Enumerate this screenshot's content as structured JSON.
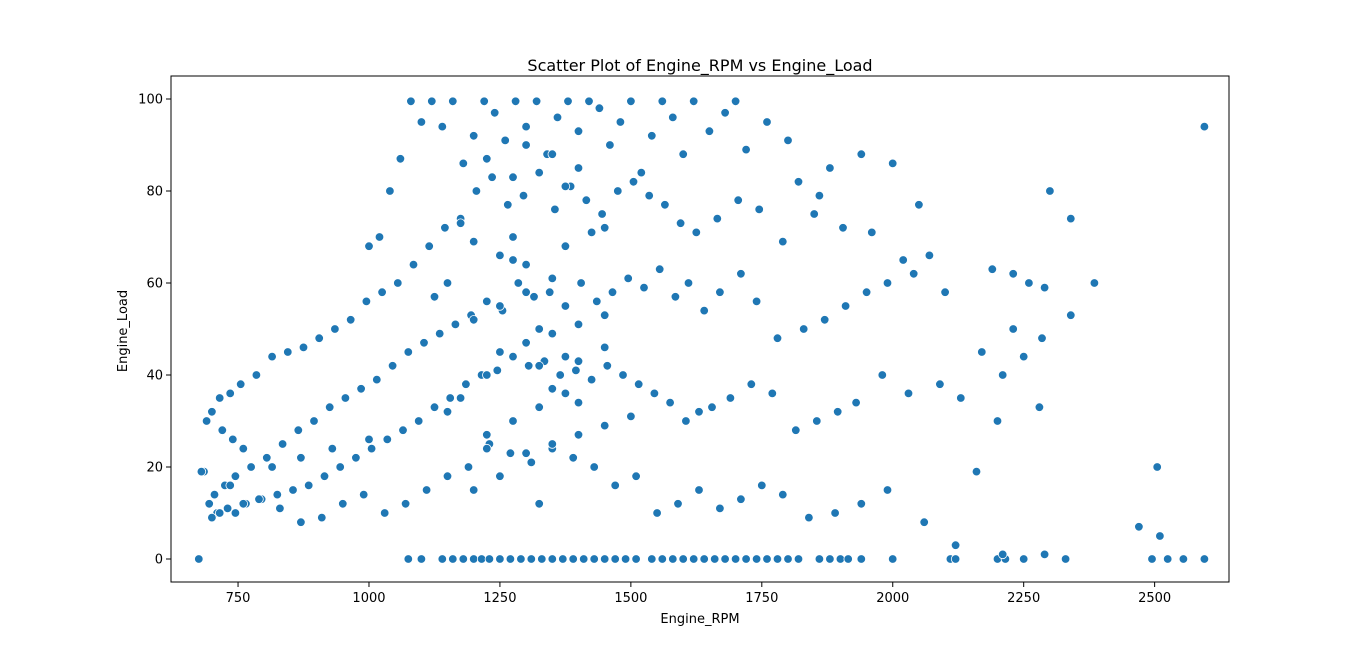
{
  "chart_data": {
    "type": "scatter",
    "title": "Scatter Plot of Engine_RPM vs Engine_Load",
    "xlabel": "Engine_RPM",
    "ylabel": "Engine_Load",
    "xlim": [
      622,
      2642
    ],
    "ylim": [
      -5,
      105
    ],
    "xticks": [
      750,
      1000,
      1250,
      1500,
      1750,
      2000,
      2250,
      2500
    ],
    "yticks": [
      0,
      20,
      40,
      60,
      80,
      100
    ],
    "grid": false,
    "legend": "none",
    "marker_color": "#1f77b4",
    "marker_edge_color": "#ffffff",
    "series": [
      {
        "x": [
          675,
          1075,
          1100,
          1140,
          1160,
          1180,
          1200,
          1215,
          1230,
          1250,
          1270,
          1290,
          1310,
          1330,
          1350,
          1370,
          1390,
          1410,
          1430,
          1450,
          1470,
          1490,
          1510,
          1540,
          1560,
          1580,
          1600,
          1620,
          1640,
          1660,
          1680,
          1700,
          1720,
          1740,
          1760,
          1780,
          1800,
          1820,
          1860,
          1880,
          1900,
          1915,
          1940,
          2000,
          2110,
          2120,
          2200,
          2215,
          2250,
          2330,
          2495,
          2525,
          2555,
          2595,
          2595,
          2385,
          2300,
          2340,
          2050,
          2000,
          1940,
          1880,
          1860,
          1820,
          1800,
          1760,
          1720,
          1700,
          1680,
          1650,
          1620,
          1600,
          1580,
          1560,
          1540,
          1520,
          1500,
          1480,
          1460,
          1440,
          1420,
          1400,
          1380,
          1360,
          1340,
          1320,
          1300,
          1280,
          1260,
          1240,
          1220,
          1200,
          1180,
          1160,
          1140,
          1120,
          1100,
          1080,
          1060,
          1040,
          1020,
          1000,
          2190,
          2230,
          2260,
          2290,
          2020,
          2070,
          1960,
          1905,
          1850,
          1790,
          1745,
          1705,
          1665,
          1625,
          1595,
          1565,
          1535,
          1505,
          1475,
          1445,
          1415,
          1385,
          1355,
          1325,
          1295,
          1265,
          1235,
          1205,
          1175,
          1145,
          1115,
          1085,
          1055,
          1025,
          995,
          965,
          935,
          905,
          875,
          845,
          815,
          785,
          755,
          735,
          715,
          700,
          690,
          720,
          740,
          760,
          2230,
          2285,
          2170,
          2340,
          2100,
          2040,
          1990,
          1950,
          1910,
          1870,
          1830,
          1780,
          1740,
          1710,
          1670,
          1640,
          1610,
          1585,
          1555,
          1525,
          1495,
          1465,
          1435,
          1405,
          1375,
          1345,
          1315,
          1285,
          1255,
          1225,
          1195,
          1165,
          1135,
          1105,
          1075,
          1045,
          1015,
          985,
          955,
          925,
          895,
          865,
          835,
          805,
          775,
          745,
          725,
          705,
          695,
          710,
          2210,
          2250,
          2280,
          2200,
          2130,
          2090,
          2030,
          1980,
          1930,
          1895,
          1855,
          1815,
          1770,
          1730,
          1690,
          1655,
          1630,
          1605,
          1575,
          1545,
          1515,
          1485,
          1455,
          1425,
          1395,
          1365,
          1335,
          1305,
          1275,
          1245,
          1215,
          1185,
          1155,
          1125,
          1095,
          1065,
          1035,
          1005,
          975,
          945,
          915,
          885,
          855,
          825,
          795,
          765,
          730,
          715,
          700,
          685,
          2470,
          2510,
          2505,
          2290,
          2210,
          2160,
          2120,
          2060,
          1990,
          1940,
          1890,
          1840,
          1790,
          1750,
          1710,
          1670,
          1630,
          1590,
          1550,
          1510,
          1470,
          1430,
          1390,
          1350,
          1310,
          1270,
          1230,
          1190,
          1150,
          1110,
          1070,
          1030,
          990,
          950,
          910,
          870,
          830,
          790,
          760,
          745,
          735,
          680,
          815,
          870,
          930,
          1000,
          1250,
          1300,
          1350,
          1400,
          1450,
          1275,
          1325,
          1375,
          1425,
          1225,
          1200,
          1250,
          1300,
          1350,
          1400,
          1450,
          1325,
          1375,
          1275,
          1175,
          1150,
          1225,
          1300,
          1350,
          1400,
          1450,
          1500,
          1250,
          1200,
          1325,
          1375,
          1425,
          1175,
          1275,
          1225,
          1350,
          1400,
          1300,
          1250,
          1200,
          1450,
          1150,
          1125,
          1350,
          1300,
          1400,
          1225,
          1275,
          1375,
          1325
        ],
        "y": [
          0,
          0,
          0,
          0,
          0,
          0,
          0,
          0,
          0,
          0,
          0,
          0,
          0,
          0,
          0,
          0,
          0,
          0,
          0,
          0,
          0,
          0,
          0,
          0,
          0,
          0,
          0,
          0,
          0,
          0,
          0,
          0,
          0,
          0,
          0,
          0,
          0,
          0,
          0,
          0,
          0,
          0,
          0,
          0,
          0,
          0,
          0,
          0,
          0,
          0,
          0,
          0,
          0,
          0,
          94,
          60,
          80,
          74,
          77,
          86,
          88,
          85,
          79,
          82,
          91,
          95,
          89,
          99.5,
          97,
          93,
          99.5,
          88,
          96,
          99.5,
          92,
          84,
          99.5,
          95,
          90,
          98,
          99.5,
          93,
          99.5,
          96,
          88,
          99.5,
          94,
          99.5,
          91,
          97,
          99.5,
          92,
          86,
          99.5,
          94,
          99.5,
          95,
          99.5,
          87,
          80,
          70,
          68,
          63,
          62,
          60,
          59,
          65,
          66,
          71,
          72,
          75,
          69,
          76,
          78,
          74,
          71,
          73,
          77,
          79,
          82,
          80,
          75,
          78,
          81,
          76,
          84,
          79,
          77,
          83,
          80,
          74,
          72,
          68,
          64,
          60,
          58,
          56,
          52,
          50,
          48,
          46,
          45,
          44,
          40,
          38,
          36,
          35,
          32,
          30,
          28,
          26,
          24,
          50,
          48,
          45,
          53,
          58,
          62,
          60,
          58,
          55,
          52,
          50,
          48,
          56,
          62,
          58,
          54,
          60,
          57,
          63,
          59,
          61,
          58,
          56,
          60,
          55,
          58,
          57,
          60,
          54,
          56,
          53,
          51,
          49,
          47,
          45,
          42,
          39,
          37,
          35,
          33,
          30,
          28,
          25,
          22,
          20,
          18,
          16,
          14,
          12,
          10,
          40,
          44,
          33,
          30,
          35,
          38,
          36,
          40,
          34,
          32,
          30,
          28,
          36,
          38,
          35,
          33,
          32,
          30,
          34,
          36,
          38,
          40,
          42,
          39,
          41,
          40,
          43,
          42,
          44,
          41,
          40,
          38,
          35,
          33,
          30,
          28,
          26,
          24,
          22,
          20,
          18,
          16,
          15,
          14,
          13,
          12,
          11,
          10,
          9,
          19,
          7,
          5,
          20,
          1,
          1,
          19,
          3,
          8,
          15,
          12,
          10,
          9,
          14,
          16,
          13,
          11,
          15,
          12,
          10,
          18,
          16,
          20,
          22,
          24,
          21,
          23,
          25,
          20,
          18,
          15,
          12,
          10,
          14,
          12,
          9,
          8,
          11,
          13,
          12,
          10,
          16,
          19,
          20,
          22,
          24,
          26,
          45,
          47,
          49,
          51,
          53,
          30,
          33,
          36,
          39,
          27,
          52,
          55,
          58,
          61,
          43,
          46,
          42,
          44,
          65,
          35,
          32,
          24,
          23,
          25,
          27,
          29,
          31,
          18,
          15,
          12,
          68,
          71,
          73,
          70,
          40,
          37,
          34,
          64,
          66,
          69,
          72,
          60,
          57,
          88,
          90,
          85,
          87,
          83,
          81,
          50
        ]
      }
    ]
  }
}
